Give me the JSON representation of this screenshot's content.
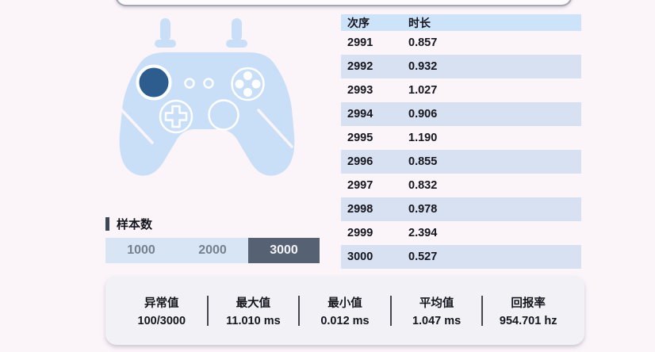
{
  "colors": {
    "page_bg": "#fbf4f9",
    "controller_body": "#c9dff7",
    "stick_dark": "#2d5c8f",
    "table_header_bg": "#cde3f9",
    "table_alt_row_bg": "#d7e1f1",
    "segment_selected_bg": "#566274",
    "segment_unselected_bg": "#d7e5f4",
    "accent_bar": "#3e4757",
    "stats_card_bg": "#f1f1f6"
  },
  "table": {
    "columns": [
      "次序",
      "时长"
    ],
    "rows": [
      [
        "2991",
        "0.857"
      ],
      [
        "2992",
        "0.932"
      ],
      [
        "2993",
        "1.027"
      ],
      [
        "2994",
        "0.906"
      ],
      [
        "2995",
        "1.190"
      ],
      [
        "2996",
        "0.855"
      ],
      [
        "2997",
        "0.832"
      ],
      [
        "2998",
        "0.978"
      ],
      [
        "2999",
        "2.394"
      ],
      [
        "3000",
        "0.527"
      ]
    ]
  },
  "sample_control": {
    "label": "样本数",
    "options": [
      {
        "label": "1000",
        "selected": false
      },
      {
        "label": "2000",
        "selected": false
      },
      {
        "label": "3000",
        "selected": true
      }
    ]
  },
  "stats": {
    "items": [
      {
        "label": "异常值",
        "value": "100/3000"
      },
      {
        "label": "最大值",
        "value": "11.010 ms"
      },
      {
        "label": "最小值",
        "value": "0.012 ms"
      },
      {
        "label": "平均值",
        "value": "1.047 ms"
      },
      {
        "label": "回报率",
        "value": "954.701 hz"
      }
    ]
  }
}
